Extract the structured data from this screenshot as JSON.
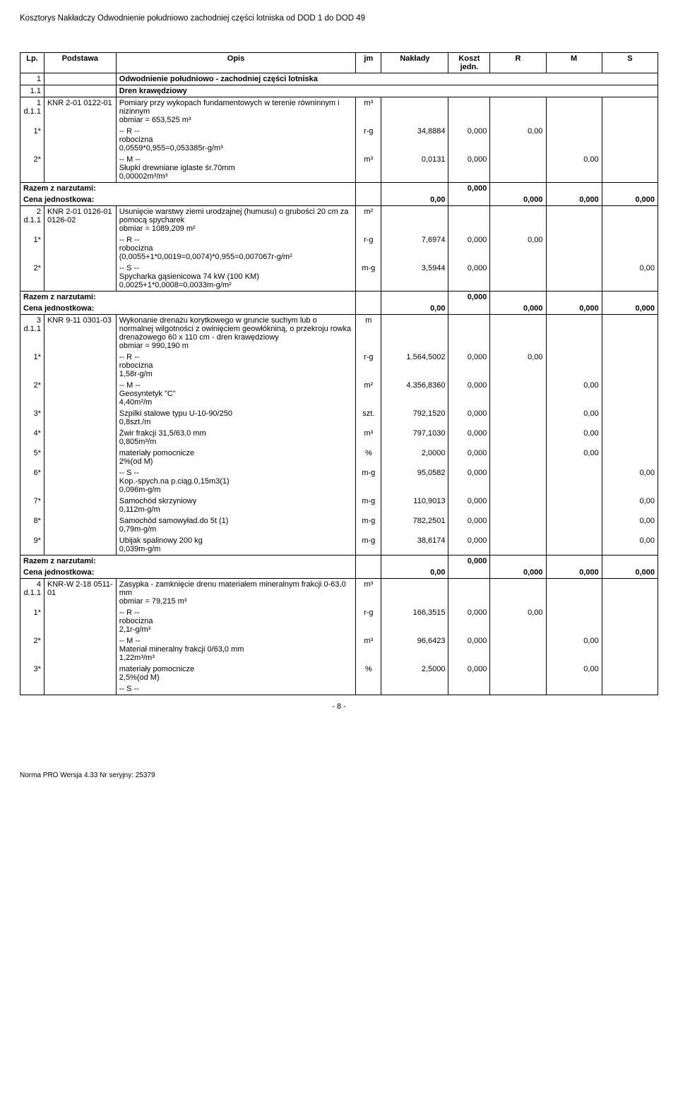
{
  "doc_title": "Kosztorys Nakładczy Odwodnienie południowo zachodniej części lotniska od DOD 1 do DOD 49",
  "headers": {
    "lp": "Lp.",
    "podstawa": "Podstawa",
    "opis": "Opis",
    "jm": "jm",
    "naklady": "Nakłady",
    "koszt": "Koszt jedn.",
    "r": "R",
    "m": "M",
    "s": "S"
  },
  "section1": {
    "lp": "1",
    "title": "Odwodnienie południowo - zachodniej części lotniska"
  },
  "section11": {
    "lp": "1.1",
    "title": "Dren krawędziowy"
  },
  "item1": {
    "lp": "1",
    "lp2": "d.1.1",
    "pod": "KNR 2-01 0122-01",
    "opis": "Pomiary przy wykopach fundamentowych w terenie równinnym i nizinnym\nobmiar  = 653,525 m³",
    "jm": "m³"
  },
  "item1_r": {
    "lp": "1*",
    "head": "-- R --",
    "opis": "robocizna\n0,0559*0,955=0,053385r-g/m³",
    "jm": "r-g",
    "nakl": "34,8884",
    "koszt": "0,000",
    "r": "0,00"
  },
  "item1_m": {
    "lp": "2*",
    "head": "-- M --",
    "opis": "Słupki drewniane iglaste śr.70mm\n0,00002m³/m³",
    "jm": "m³",
    "nakl": "0,0131",
    "koszt": "0,000",
    "m": "0,00"
  },
  "razem1": {
    "label": "Razem z narzutami:",
    "koszt": "0,000"
  },
  "cena1": {
    "label": "Cena jednostkowa:",
    "val": "0,00",
    "r": "0,000",
    "m": "0,000",
    "s": "0,000"
  },
  "item2": {
    "lp": "2",
    "lp2": "d.1.1",
    "pod": "KNR 2-01 0126-01 0126-02",
    "opis": "Usunięcie warstwy ziemi urodzajnej (humusu) o grubości 20 cm za pomocą spycharek\nobmiar  = 1089,209 m²",
    "jm": "m²"
  },
  "item2_r": {
    "lp": "1*",
    "head": "-- R --",
    "opis": "robocizna\n(0,0055+1*0,0019=0,0074)*0,955=0,007067r-g/m²",
    "jm": "r-g",
    "nakl": "7,6974",
    "koszt": "0,000",
    "r": "0,00"
  },
  "item2_s": {
    "lp": "2*",
    "head": "-- S --",
    "opis": "Spycharka gąsienicowa 74 kW (100 KM)\n0,0025+1*0,0008=0,0033m-g/m²",
    "jm": "m-g",
    "nakl": "3,5944",
    "koszt": "0,000",
    "s": "0,00"
  },
  "razem2": {
    "label": "Razem z narzutami:",
    "koszt": "0,000"
  },
  "cena2": {
    "label": "Cena jednostkowa:",
    "val": "0,00",
    "r": "0,000",
    "m": "0,000",
    "s": "0,000"
  },
  "item3": {
    "lp": "3",
    "lp2": "d.1.1",
    "pod": "KNR 9-11 0301-03",
    "opis": "Wykonanie drenażu korytkowego w gruncie suchym lub o normalnej wilgotności z owinięciem geowłókniną, o przekroju rowka drenażowego 60 x 110 cm - dren krawędziowy\nobmiar  = 990,190 m",
    "jm": "m"
  },
  "item3_r": {
    "lp": "1*",
    "head": "-- R --",
    "opis": "robocizna\n1,58r-g/m",
    "jm": "r-g",
    "nakl": "1.564,5002",
    "koszt": "0,000",
    "r": "0,00"
  },
  "item3_m2": {
    "lp": "2*",
    "head": "-- M --",
    "opis": "Geosyntetyk \"C\"\n4,40m²/m",
    "jm": "m²",
    "nakl": "4.356,8360",
    "koszt": "0,000",
    "m": "0,00"
  },
  "item3_m3": {
    "lp": "3*",
    "opis": "Szpilki stalowe typu U-10-90/250\n0,8szt./m",
    "jm": "szt.",
    "nakl": "792,1520",
    "koszt": "0,000",
    "m": "0,00"
  },
  "item3_m4": {
    "lp": "4*",
    "opis": "Żwir frakcji 31,5/63,0 mm\n0,805m³/m",
    "jm": "m³",
    "nakl": "797,1030",
    "koszt": "0,000",
    "m": "0,00"
  },
  "item3_m5": {
    "lp": "5*",
    "opis": "materiały pomocnicze\n2%(od M)",
    "jm": "%",
    "nakl": "2,0000",
    "koszt": "0,000",
    "m": "0,00"
  },
  "item3_s6": {
    "lp": "6*",
    "head": "-- S --",
    "opis": "Kop.-spych.na p.ciąg.0,15m3(1)\n0,096m-g/m",
    "jm": "m-g",
    "nakl": "95,0582",
    "koszt": "0,000",
    "s": "0,00"
  },
  "item3_s7": {
    "lp": "7*",
    "opis": "Samochód skrzyniowy\n0,112m-g/m",
    "jm": "m-g",
    "nakl": "110,9013",
    "koszt": "0,000",
    "s": "0,00"
  },
  "item3_s8": {
    "lp": "8*",
    "opis": "Samochód samowyład.do 5t (1)\n0,79m-g/m",
    "jm": "m-g",
    "nakl": "782,2501",
    "koszt": "0,000",
    "s": "0,00"
  },
  "item3_s9": {
    "lp": "9*",
    "opis": "Ubijak spalinowy 200 kg\n0,039m-g/m",
    "jm": "m-g",
    "nakl": "38,6174",
    "koszt": "0,000",
    "s": "0,00"
  },
  "razem3": {
    "label": "Razem z narzutami:",
    "koszt": "0,000"
  },
  "cena3": {
    "label": "Cena jednostkowa:",
    "val": "0,00",
    "r": "0,000",
    "m": "0,000",
    "s": "0,000"
  },
  "item4": {
    "lp": "4",
    "lp2": "d.1.1",
    "pod": "KNR-W 2-18 0511-01",
    "opis": "Zasypka - zamknięcie drenu materiałem mineralnym frakcji 0-63,0 mm\nobmiar  = 79,215 m³",
    "jm": "m³"
  },
  "item4_r": {
    "lp": "1*",
    "head": "-- R --",
    "opis": "robocizna\n2,1r-g/m³",
    "jm": "r-g",
    "nakl": "166,3515",
    "koszt": "0,000",
    "r": "0,00"
  },
  "item4_m2": {
    "lp": "2*",
    "head": "-- M --",
    "opis": "Materiał mineralny  frakcji 0/63,0 mm\n1,22m³/m³",
    "jm": "m³",
    "nakl": "96,6423",
    "koszt": "0,000",
    "m": "0,00"
  },
  "item4_m3": {
    "lp": "3*",
    "opis": "materiały pomocnicze\n2,5%(od M)",
    "jm": "%",
    "nakl": "2,5000",
    "koszt": "0,000",
    "m": "0,00"
  },
  "item4_s_head": "-- S --",
  "footer_page": "- 8 -",
  "footer_soft": "Norma PRO Wersja 4.33 Nr seryjny: 25379"
}
